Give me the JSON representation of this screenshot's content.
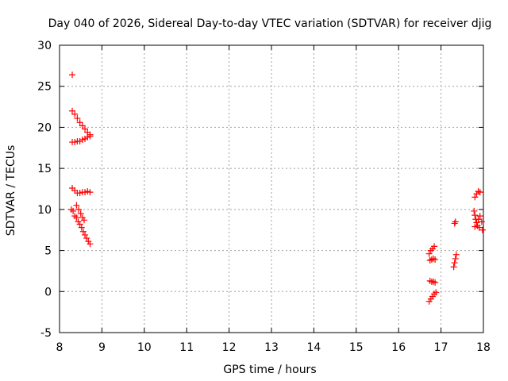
{
  "chart_data": {
    "type": "scatter",
    "title": "Day 040 of 2026, Sidereal Day-to-day VTEC variation (SDTVAR) for receiver djig",
    "xlabel": "GPS time / hours",
    "ylabel": "SDTVAR / TECUs",
    "xlim": [
      8,
      18
    ],
    "ylim": [
      -5,
      30
    ],
    "xticks": [
      "8",
      "9",
      "10",
      "11",
      "12",
      "13",
      "14",
      "15",
      "16",
      "17",
      "18"
    ],
    "yticks": [
      "-5",
      "0",
      "5",
      "10",
      "15",
      "20",
      "25",
      "30"
    ],
    "grid": true,
    "marker": "+",
    "color": "#ff0000",
    "series": [
      {
        "points": [
          [
            8.3,
            26.4
          ],
          [
            8.3,
            22.0
          ],
          [
            8.36,
            21.6
          ],
          [
            8.42,
            21.1
          ],
          [
            8.48,
            20.6
          ],
          [
            8.54,
            20.2
          ],
          [
            8.6,
            19.8
          ],
          [
            8.66,
            19.4
          ],
          [
            8.72,
            19.1
          ],
          [
            8.3,
            18.2
          ],
          [
            8.36,
            18.2
          ],
          [
            8.42,
            18.3
          ],
          [
            8.48,
            18.3
          ],
          [
            8.54,
            18.5
          ],
          [
            8.6,
            18.6
          ],
          [
            8.66,
            18.8
          ],
          [
            8.72,
            18.9
          ],
          [
            8.3,
            12.6
          ],
          [
            8.36,
            12.3
          ],
          [
            8.42,
            12.0
          ],
          [
            8.48,
            12.0
          ],
          [
            8.54,
            12.1
          ],
          [
            8.6,
            12.1
          ],
          [
            8.66,
            12.2
          ],
          [
            8.72,
            12.1
          ],
          [
            8.28,
            10.0
          ],
          [
            8.32,
            9.8
          ],
          [
            8.36,
            9.2
          ],
          [
            8.4,
            9.0
          ],
          [
            8.44,
            8.5
          ],
          [
            8.48,
            8.2
          ],
          [
            8.52,
            7.8
          ],
          [
            8.56,
            7.3
          ],
          [
            8.6,
            6.9
          ],
          [
            8.64,
            6.5
          ],
          [
            8.68,
            6.1
          ],
          [
            8.72,
            5.8
          ],
          [
            8.4,
            10.5
          ],
          [
            8.45,
            10.0
          ],
          [
            8.5,
            9.5
          ],
          [
            8.54,
            9.0
          ],
          [
            8.58,
            8.7
          ],
          [
            16.72,
            4.6
          ],
          [
            16.76,
            5.0
          ],
          [
            16.8,
            5.2
          ],
          [
            16.84,
            5.5
          ],
          [
            16.74,
            3.8
          ],
          [
            16.78,
            3.9
          ],
          [
            16.82,
            4.0
          ],
          [
            16.86,
            3.9
          ],
          [
            16.74,
            1.3
          ],
          [
            16.78,
            1.2
          ],
          [
            16.82,
            1.2
          ],
          [
            16.86,
            1.1
          ],
          [
            16.72,
            -1.2
          ],
          [
            16.76,
            -0.9
          ],
          [
            16.8,
            -0.6
          ],
          [
            16.84,
            -0.3
          ],
          [
            16.88,
            -0.1
          ],
          [
            17.32,
            8.3
          ],
          [
            17.34,
            8.5
          ],
          [
            17.3,
            3.0
          ],
          [
            17.32,
            3.5
          ],
          [
            17.34,
            4.0
          ],
          [
            17.36,
            4.5
          ],
          [
            17.8,
            11.5
          ],
          [
            17.84,
            11.9
          ],
          [
            17.88,
            12.2
          ],
          [
            17.92,
            12.1
          ],
          [
            17.78,
            9.8
          ],
          [
            17.8,
            9.3
          ],
          [
            17.82,
            8.8
          ],
          [
            17.84,
            8.4
          ],
          [
            17.8,
            7.9
          ],
          [
            17.86,
            8.0
          ],
          [
            17.88,
            8.8
          ],
          [
            17.92,
            9.2
          ],
          [
            17.96,
            8.5
          ],
          [
            17.98,
            7.5
          ],
          [
            17.9,
            7.8
          ]
        ]
      }
    ]
  }
}
